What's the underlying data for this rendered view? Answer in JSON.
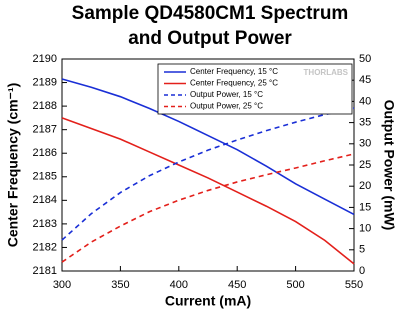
{
  "chart_data": {
    "type": "line",
    "title": [
      "Sample QD4580CM1 Spectrum",
      "and Output Power"
    ],
    "xlabel": "Current (mA)",
    "ylabel": "Center Frequency (cm⁻¹)",
    "y2label": "Output Power (mW)",
    "watermark": "THORLABS",
    "x": [
      300,
      325,
      350,
      375,
      400,
      425,
      450,
      475,
      500,
      525,
      550
    ],
    "xlim": [
      300,
      550
    ],
    "xticks": [
      300,
      350,
      400,
      450,
      500,
      550
    ],
    "ylim": [
      2181,
      2190
    ],
    "yticks": [
      2181,
      2182,
      2183,
      2184,
      2185,
      2186,
      2187,
      2188,
      2189,
      2190
    ],
    "y2lim": [
      0,
      50
    ],
    "y2ticks": [
      0,
      5,
      10,
      15,
      20,
      25,
      30,
      35,
      40,
      45,
      50
    ],
    "legend": "upper right",
    "series": [
      {
        "name": "Center Frequency, 15 °C",
        "color": "#1a2fd6",
        "line_style": "solid",
        "values": [
          2189.15,
          2188.8,
          2188.4,
          2187.9,
          2187.35,
          2186.75,
          2186.15,
          2185.45,
          2184.7,
          2184.05,
          2183.4
        ]
      },
      {
        "name": "Center Frequency, 25 °C",
        "color": "#e3201b",
        "line_style": "solid",
        "values": [
          2187.5,
          2187.05,
          2186.6,
          2186.05,
          2185.5,
          2184.95,
          2184.35,
          2183.75,
          2183.1,
          2182.3,
          2181.3
        ]
      },
      {
        "name": "Output Power, 15 °C",
        "color": "#1a2fd6",
        "line_style": "dashed",
        "axis": "y2",
        "values": [
          7.3,
          13.5,
          18.5,
          22.5,
          25.7,
          28.5,
          30.9,
          33.1,
          35.1,
          36.9,
          38.4
        ]
      },
      {
        "name": "Output Power, 25 °C",
        "color": "#e3201b",
        "line_style": "dashed",
        "axis": "y2",
        "values": [
          2.1,
          6.8,
          10.6,
          14.0,
          16.7,
          19.0,
          21.0,
          22.7,
          24.3,
          26.0,
          27.6
        ]
      }
    ]
  }
}
